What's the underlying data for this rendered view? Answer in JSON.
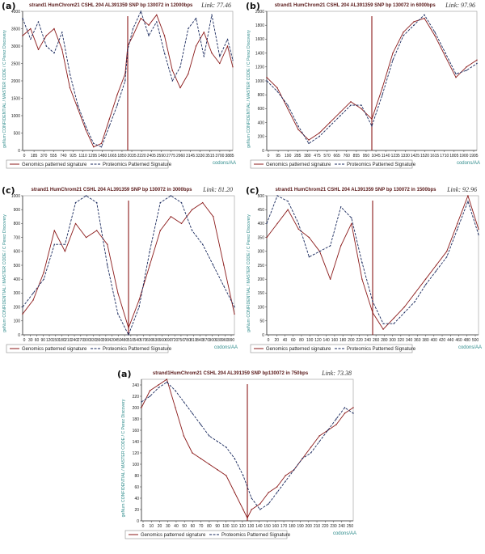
{
  "colors": {
    "genomics": "#8b1a1a",
    "proteomics": "#1a2a5e",
    "marker": "#8b1a1a",
    "axis_text": "#2f8c8c"
  },
  "chart_data": [
    {
      "panel_label": "(a)",
      "type": "line",
      "title": "strand1 HumChrom21 CSHL 204 AL391359 SNP bp 130072 in 12000bps",
      "link_text": "Link: 77.46",
      "ylabel": "geNum CONFIDENTIAL / MASTER CODE / C Perez Discovery",
      "xlabel": "codons/AA",
      "xlim": [
        0,
        4000
      ],
      "ylim": [
        0,
        4000
      ],
      "yticks": [
        0,
        500,
        1000,
        1500,
        2000,
        2500,
        3000,
        3500,
        4000
      ],
      "xtick_labels": [
        "0",
        "185",
        "370",
        "555",
        "740",
        "925",
        "1110",
        "1295",
        "1480",
        "1665",
        "1850",
        "2035",
        "2220",
        "2405",
        "2590",
        "2775",
        "2960",
        "3145",
        "3330",
        "3515",
        "3700",
        "3885"
      ],
      "marker_x": 2000,
      "legend": [
        "Genomics patterned signature",
        "Proteomics Patterned Signature"
      ],
      "series": [
        {
          "name": "Genomics patterned signature",
          "style": "solid",
          "x": [
            0,
            150,
            300,
            450,
            600,
            750,
            900,
            1050,
            1200,
            1350,
            1500,
            1650,
            1800,
            1950,
            2000,
            2100,
            2250,
            2400,
            2550,
            2700,
            2850,
            3000,
            3150,
            3300,
            3450,
            3600,
            3750,
            3900,
            4000
          ],
          "y": [
            3300,
            3500,
            2900,
            3300,
            3500,
            2900,
            1800,
            1200,
            600,
            100,
            200,
            900,
            1600,
            2200,
            3000,
            3300,
            3800,
            3600,
            3900,
            3300,
            2300,
            1800,
            2200,
            3000,
            3400,
            2800,
            2500,
            3000,
            2400
          ]
        },
        {
          "name": "Proteomics Patterned Signature",
          "style": "dashed",
          "x": [
            0,
            150,
            300,
            450,
            600,
            750,
            900,
            1050,
            1200,
            1350,
            1500,
            1650,
            1800,
            1950,
            2000,
            2100,
            2250,
            2400,
            2550,
            2700,
            2850,
            3000,
            3150,
            3300,
            3450,
            3600,
            3750,
            3900,
            4000
          ],
          "y": [
            3800,
            3200,
            3700,
            3000,
            2800,
            3400,
            2200,
            1300,
            700,
            200,
            100,
            700,
            1300,
            2000,
            2900,
            3500,
            4000,
            3300,
            3700,
            2800,
            2000,
            2400,
            3500,
            3800,
            2700,
            3900,
            2700,
            3200,
            2600
          ]
        }
      ]
    },
    {
      "panel_label": "(b)",
      "type": "line",
      "title": "strand1 HumChrom21 CSHL 204 AL391359 SNP bp 130072 in 6000bps",
      "link_text": "Link: 97.96",
      "ylabel": "geNum CONFIDENTIAL / MASTER CODE / C Perez Discovery",
      "xlabel": "codons/AA",
      "xlim": [
        0,
        2000
      ],
      "ylim": [
        0,
        2000
      ],
      "yticks": [
        0,
        200,
        400,
        600,
        800,
        1000,
        1200,
        1400,
        1600,
        1800,
        2000
      ],
      "xtick_labels": [
        "0",
        "95",
        "190",
        "285",
        "380",
        "475",
        "570",
        "665",
        "760",
        "855",
        "950",
        "1045",
        "1140",
        "1235",
        "1330",
        "1425",
        "1520",
        "1615",
        "1710",
        "1805",
        "1900",
        "1995"
      ],
      "marker_x": 1000,
      "legend": [
        "Genomics patterned signature",
        "Proteomics Patterned Signature"
      ],
      "series": [
        {
          "name": "Genomics patterned signature",
          "style": "solid",
          "x": [
            0,
            100,
            200,
            300,
            400,
            500,
            600,
            700,
            800,
            900,
            1000,
            1100,
            1200,
            1300,
            1400,
            1500,
            1600,
            1700,
            1800,
            1900,
            2000
          ],
          "y": [
            1050,
            900,
            600,
            300,
            150,
            250,
            400,
            550,
            700,
            600,
            450,
            900,
            1400,
            1700,
            1850,
            1900,
            1650,
            1350,
            1050,
            1200,
            1300
          ]
        },
        {
          "name": "Proteomics Patterned Signature",
          "style": "dashed",
          "x": [
            0,
            100,
            200,
            300,
            400,
            500,
            600,
            700,
            800,
            900,
            1000,
            1100,
            1200,
            1300,
            1400,
            1500,
            1600,
            1700,
            1800,
            1900,
            2000
          ],
          "y": [
            1000,
            850,
            650,
            350,
            100,
            200,
            350,
            500,
            650,
            650,
            350,
            800,
            1300,
            1650,
            1800,
            1950,
            1700,
            1400,
            1100,
            1150,
            1250
          ]
        }
      ]
    },
    {
      "panel_label": "(c)",
      "type": "line",
      "title": "strand1 HumChrom21 CSHL 204 AL391359 SNP bp 130072 in 3000bps",
      "link_text": "Link: 81.20",
      "ylabel": "geNum CONFIDENTIAL / MASTER CODE / C Perez Discovery",
      "xlabel": "codons/AA",
      "xlim": [
        0,
        1000
      ],
      "ylim": [
        0,
        1000
      ],
      "yticks": [
        0,
        100,
        200,
        300,
        400,
        500,
        600,
        700,
        800,
        900,
        1000
      ],
      "xtick_labels": [
        "0",
        "30",
        "60",
        "90",
        "120",
        "150",
        "180",
        "210",
        "240",
        "270",
        "300",
        "330",
        "360",
        "390",
        "420",
        "450",
        "480",
        "510",
        "540",
        "570",
        "600",
        "630",
        "660",
        "690",
        "720",
        "750",
        "780",
        "810",
        "840",
        "870",
        "900",
        "930",
        "960",
        "990"
      ],
      "marker_x": 500,
      "legend": [
        "Genomics patterned signature",
        "Proteomics Patterned Signature"
      ],
      "series": [
        {
          "name": "Genomics patterned signature",
          "style": "solid",
          "x": [
            0,
            50,
            100,
            150,
            200,
            250,
            300,
            350,
            400,
            450,
            500,
            550,
            600,
            650,
            700,
            750,
            800,
            850,
            900,
            950,
            1000
          ],
          "y": [
            150,
            250,
            450,
            750,
            600,
            800,
            700,
            750,
            650,
            300,
            50,
            250,
            500,
            750,
            850,
            800,
            900,
            950,
            850,
            500,
            150
          ]
        },
        {
          "name": "Proteomics Patterned Signature",
          "style": "dashed",
          "x": [
            0,
            50,
            100,
            150,
            200,
            250,
            300,
            350,
            400,
            450,
            500,
            550,
            600,
            650,
            700,
            750,
            800,
            850,
            900,
            950,
            1000
          ],
          "y": [
            200,
            300,
            400,
            650,
            650,
            950,
            1000,
            950,
            500,
            150,
            0,
            200,
            600,
            950,
            1000,
            950,
            750,
            650,
            500,
            350,
            200
          ]
        }
      ]
    },
    {
      "panel_label": "(c)",
      "type": "line",
      "title": "strand1 HumChrom21 CSHL 204 AL391359 SNP bp 130072 in 1500bps",
      "link_text": "Link: 92.96",
      "ylabel": "geNum CONFIDENTIAL / MASTER CODE / C Perez Discovery",
      "xlabel": "codons/AA",
      "xlim": [
        0,
        500
      ],
      "ylim": [
        0,
        500
      ],
      "yticks": [
        0,
        50,
        100,
        150,
        200,
        250,
        300,
        350,
        400,
        450,
        500
      ],
      "xtick_labels": [
        "0",
        "20",
        "40",
        "60",
        "80",
        "100",
        "120",
        "140",
        "160",
        "180",
        "200",
        "220",
        "240",
        "260",
        "280",
        "300",
        "320",
        "340",
        "360",
        "380",
        "400",
        "420",
        "440",
        "460",
        "480",
        "500"
      ],
      "marker_x": 250,
      "legend": [
        "Genomics patterned signature",
        "Proteomics Patterned Signature"
      ],
      "series": [
        {
          "name": "Genomics patterned signature",
          "style": "solid",
          "x": [
            0,
            25,
            50,
            75,
            100,
            125,
            150,
            175,
            200,
            225,
            250,
            275,
            300,
            325,
            350,
            375,
            400,
            425,
            450,
            475,
            500
          ],
          "y": [
            350,
            400,
            450,
            380,
            350,
            300,
            200,
            320,
            400,
            200,
            80,
            20,
            60,
            100,
            150,
            200,
            250,
            300,
            400,
            500,
            380
          ]
        },
        {
          "name": "Proteomics Patterned Signature",
          "style": "dashed",
          "x": [
            0,
            25,
            50,
            75,
            100,
            125,
            150,
            175,
            200,
            225,
            250,
            275,
            300,
            325,
            350,
            375,
            400,
            425,
            450,
            475,
            500
          ],
          "y": [
            400,
            500,
            480,
            400,
            280,
            300,
            320,
            460,
            420,
            260,
            120,
            40,
            40,
            80,
            120,
            180,
            230,
            280,
            380,
            480,
            360
          ]
        }
      ]
    },
    {
      "panel_label": "(a)",
      "type": "line",
      "title": "strand1HumChrom21 CSHL 204 AL391359 SNP bp130072 in 750bps",
      "link_text": "Link: 73.38",
      "ylabel": "geNum CONFIDENTIAL / MASTER CODE / C Perez Discovery",
      "xlabel": "codons/AA",
      "xlim": [
        0,
        250
      ],
      "ylim": [
        0,
        250
      ],
      "yticks": [
        0,
        20,
        40,
        60,
        80,
        100,
        120,
        140,
        160,
        180,
        200,
        220,
        240
      ],
      "xtick_labels": [
        "0",
        "10",
        "20",
        "30",
        "40",
        "50",
        "60",
        "70",
        "80",
        "90",
        "100",
        "110",
        "120",
        "130",
        "140",
        "150",
        "160",
        "170",
        "180",
        "190",
        "200",
        "210",
        "220",
        "230",
        "240",
        "250"
      ],
      "marker_x": 125,
      "legend": [
        "Genomics patterned signature",
        "Proteomics Patterned Signature"
      ],
      "series": [
        {
          "name": "Genomics patterned signature",
          "style": "solid",
          "x": [
            0,
            10,
            20,
            30,
            40,
            50,
            60,
            70,
            80,
            90,
            100,
            110,
            120,
            125,
            130,
            140,
            150,
            160,
            170,
            180,
            190,
            200,
            210,
            220,
            230,
            240,
            250
          ],
          "y": [
            200,
            230,
            240,
            250,
            200,
            150,
            120,
            110,
            100,
            90,
            80,
            50,
            20,
            5,
            20,
            30,
            50,
            60,
            80,
            90,
            110,
            130,
            150,
            160,
            170,
            190,
            200
          ]
        },
        {
          "name": "Proteomics Patterned Signature",
          "style": "dashed",
          "x": [
            0,
            10,
            20,
            30,
            40,
            50,
            60,
            70,
            80,
            90,
            100,
            110,
            120,
            130,
            140,
            150,
            160,
            170,
            180,
            190,
            200,
            210,
            220,
            230,
            240,
            250
          ],
          "y": [
            210,
            220,
            235,
            245,
            230,
            210,
            190,
            170,
            150,
            140,
            130,
            110,
            80,
            40,
            20,
            30,
            50,
            70,
            90,
            110,
            120,
            140,
            160,
            180,
            200,
            190
          ]
        }
      ]
    }
  ]
}
